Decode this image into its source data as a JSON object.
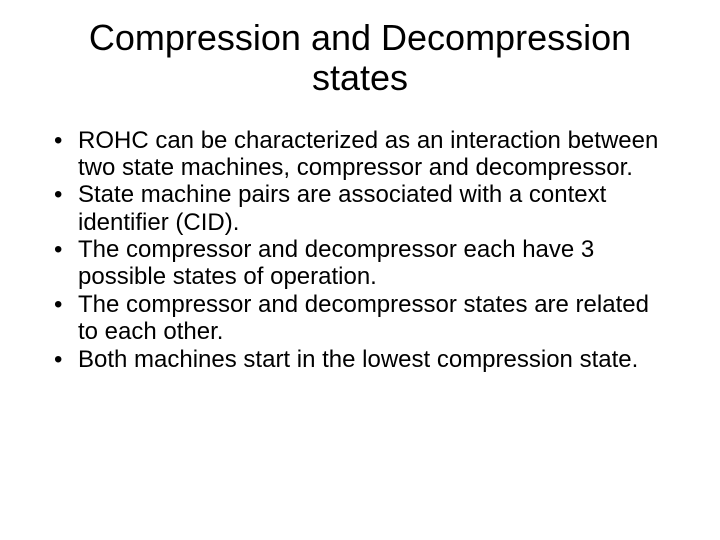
{
  "title_fontsize": 36,
  "body_fontsize": 24,
  "background_color": "#ffffff",
  "text_color": "#000000",
  "title": "Compression and Decompression states",
  "bullets": [
    "ROHC can be characterized as an interaction between two state machines, compressor and decompressor.",
    "State machine pairs are associated with a context identifier (CID).",
    "The compressor and decompressor each have 3 possible states of operation.",
    "The compressor and decompressor states are related to each other.",
    "Both machines start in the lowest compression state."
  ]
}
